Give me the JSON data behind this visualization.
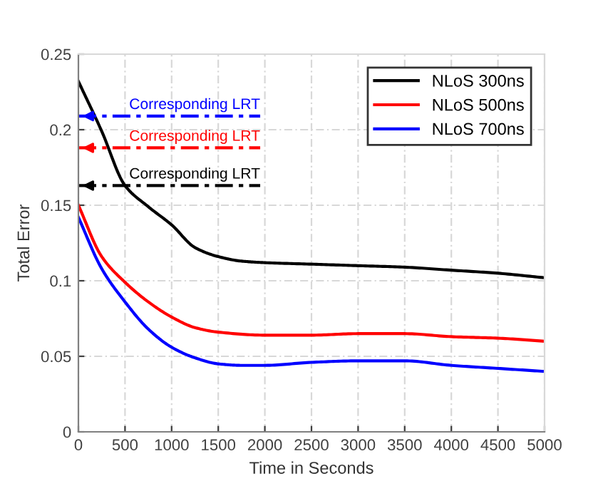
{
  "chart_data": {
    "type": "line",
    "xlabel": "Time in Seconds",
    "ylabel": "Total Error",
    "xlim": [
      0,
      5000
    ],
    "ylim": [
      0,
      0.25
    ],
    "xticks": [
      0,
      500,
      1000,
      1500,
      2000,
      2500,
      3000,
      3500,
      4000,
      4500,
      5000
    ],
    "yticks": [
      0,
      0.05,
      0.1,
      0.15,
      0.2,
      0.25
    ],
    "grid": true,
    "legend": "top right",
    "series": [
      {
        "name": "NLoS 300ns",
        "color": "#000000",
        "x": [
          0,
          250,
          500,
          750,
          1000,
          1250,
          1500,
          1750,
          2000,
          2500,
          3000,
          3500,
          4000,
          4500,
          5000
        ],
        "values": [
          0.232,
          0.199,
          0.163,
          0.149,
          0.137,
          0.122,
          0.116,
          0.113,
          0.112,
          0.111,
          0.11,
          0.109,
          0.107,
          0.105,
          0.102
        ]
      },
      {
        "name": "NLoS 500ns",
        "color": "#ff0000",
        "x": [
          0,
          250,
          500,
          750,
          1000,
          1250,
          1500,
          2000,
          2500,
          3000,
          3500,
          4000,
          4500,
          5000
        ],
        "values": [
          0.15,
          0.116,
          0.099,
          0.086,
          0.076,
          0.069,
          0.066,
          0.064,
          0.064,
          0.065,
          0.065,
          0.063,
          0.062,
          0.06
        ]
      },
      {
        "name": "NLoS 700ns",
        "color": "#0000ff",
        "x": [
          0,
          250,
          500,
          750,
          1000,
          1250,
          1500,
          1750,
          2000,
          2500,
          3000,
          3500,
          4000,
          4500,
          5000
        ],
        "values": [
          0.142,
          0.108,
          0.086,
          0.068,
          0.056,
          0.049,
          0.045,
          0.044,
          0.044,
          0.046,
          0.047,
          0.047,
          0.044,
          0.042,
          0.04
        ]
      },
      {
        "color": "#0000ff",
        "line_style": "dashed",
        "x": [
          0,
          1950
        ],
        "values": [
          0.209,
          0.209
        ]
      },
      {
        "color": "#ff0000",
        "line_style": "dashed",
        "x": [
          0,
          1950
        ],
        "values": [
          0.188,
          0.188
        ]
      },
      {
        "color": "#000000",
        "line_style": "dashed",
        "x": [
          0,
          1950
        ],
        "values": [
          0.163,
          0.163
        ]
      }
    ],
    "annotations": [
      "Corresponding LRT",
      "Corresponding LRT",
      "Corresponding LRT"
    ]
  }
}
